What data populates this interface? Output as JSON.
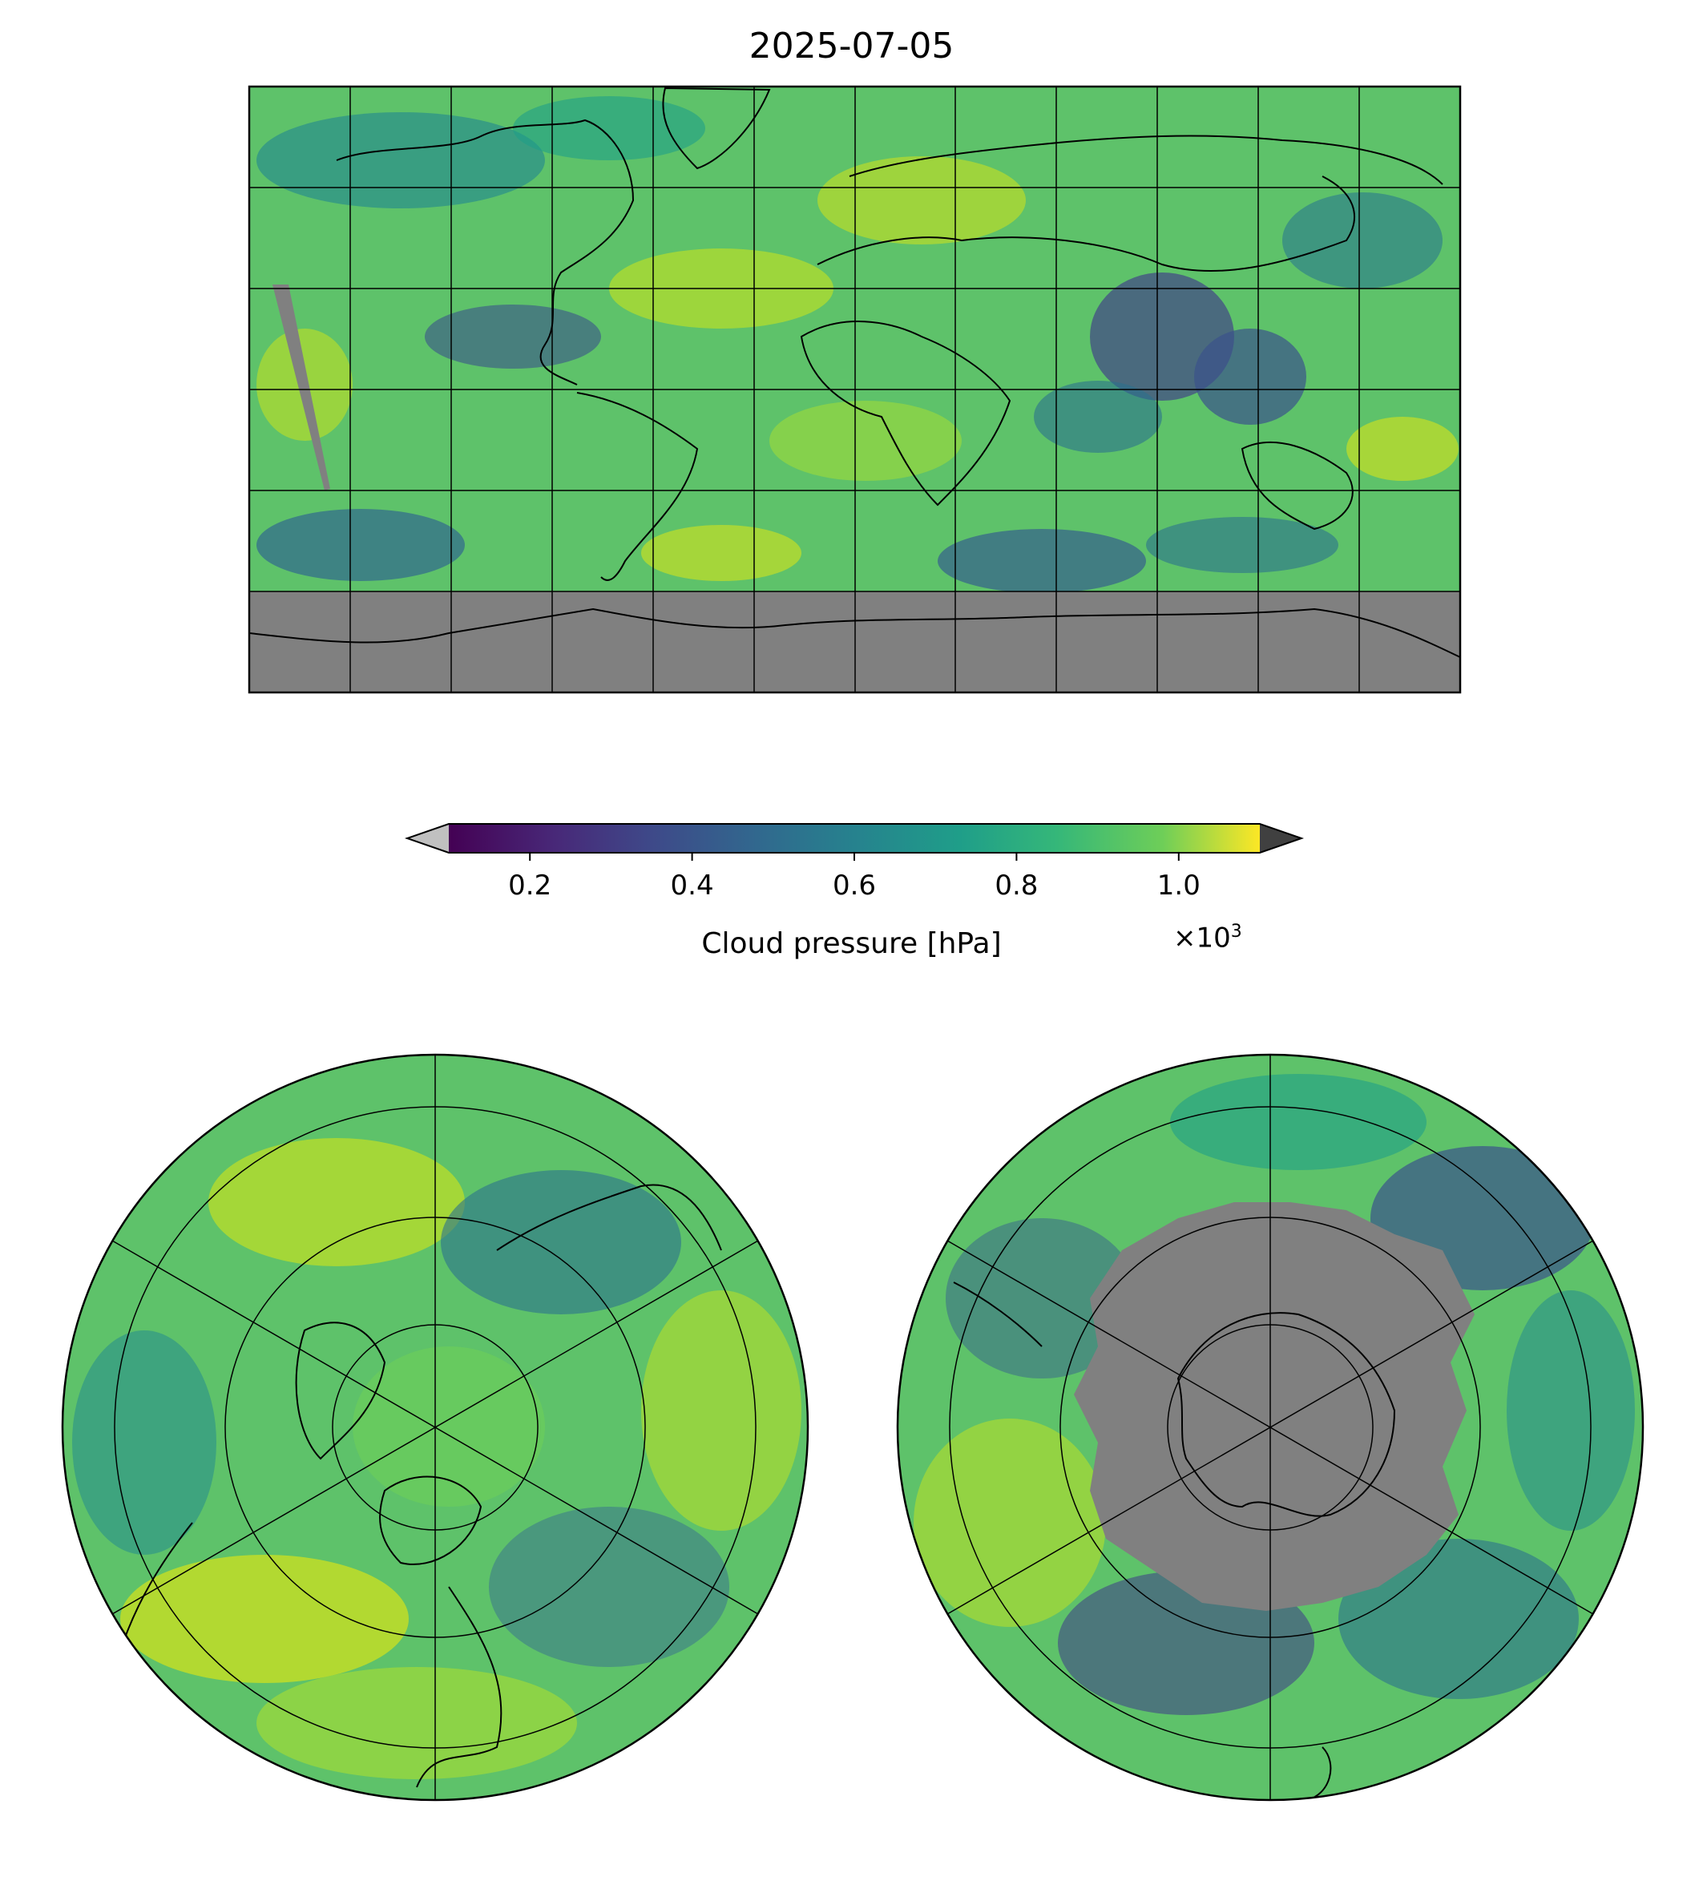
{
  "figure": {
    "title": "2025-07-05",
    "colorbar": {
      "label": "Cloud pressure [hPa]",
      "multiplier_base": "×10",
      "multiplier_exp": "3",
      "ticks": [
        "0.2",
        "0.4",
        "0.6",
        "0.8",
        "1.0"
      ],
      "colormap": "viridis",
      "under_color": "#c0c0c0",
      "over_color": "#404040",
      "missing_color": "#808080"
    },
    "panels": [
      {
        "name": "global-map",
        "projection": "PlateCarree"
      },
      {
        "name": "north-polar-map",
        "projection": "NorthPolarStereo"
      },
      {
        "name": "south-polar-map",
        "projection": "SouthPolarStereo"
      }
    ]
  },
  "chart_data": {
    "type": "heatmap",
    "title": "2025-07-05",
    "variable": "Cloud pressure",
    "units": "hPa",
    "colorbar_range": [
      100,
      1100
    ],
    "colorbar_ticks": [
      200,
      400,
      600,
      800,
      1000
    ],
    "extend": "both"
  }
}
